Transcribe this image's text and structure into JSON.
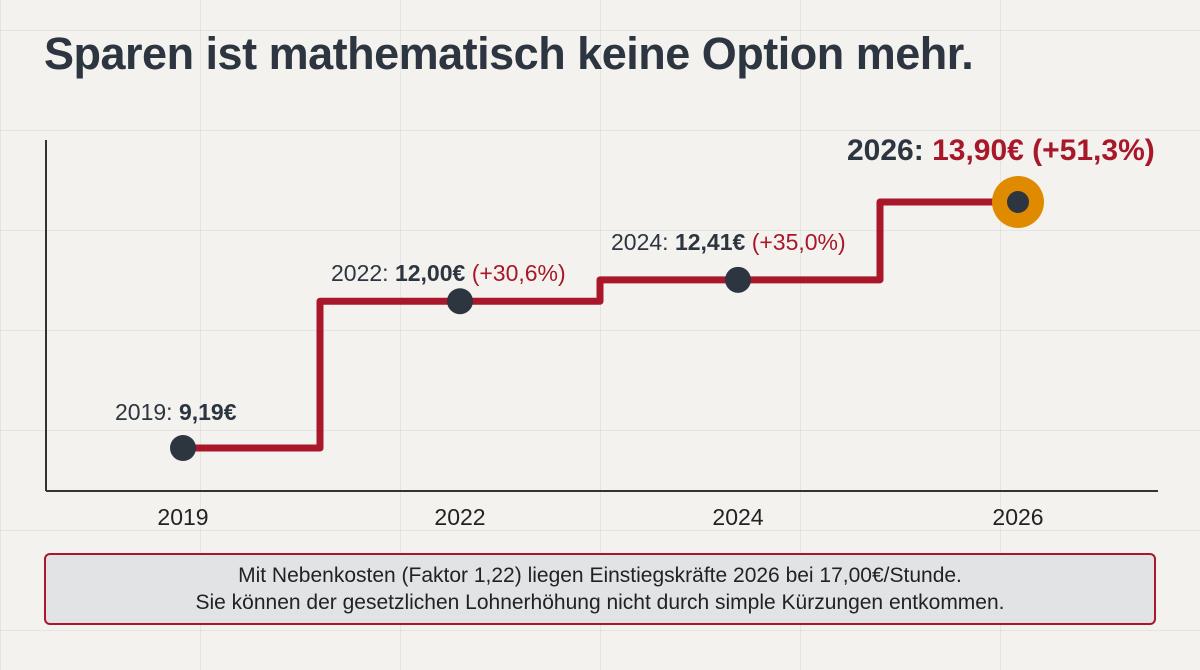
{
  "title": "Sparen ist mathematisch keine Option mehr.",
  "chart_data": {
    "type": "line",
    "step": true,
    "x": [
      2019,
      2022,
      2024,
      2026
    ],
    "x_tick_labels": [
      "2019",
      "2022",
      "2024",
      "2026"
    ],
    "values": [
      9.19,
      12.0,
      12.41,
      13.9
    ],
    "point_labels": [
      {
        "year": "2019: ",
        "value": "9,19€",
        "change": ""
      },
      {
        "year": "2022: ",
        "value": "12,00€",
        "change": " (+30,6%)"
      },
      {
        "year": "2024: ",
        "value": "12,41€",
        "change": " (+35,0%)"
      },
      {
        "year": "2026: ",
        "value": "13,90€ (+51,3%)",
        "change": ""
      }
    ],
    "xlabel": "",
    "ylabel": "",
    "grid": true,
    "line_color": "#a8182a",
    "point_color": "#2c3540",
    "highlight_color": "#e08a00"
  },
  "callout": {
    "line1": "Mit Nebenkosten (Faktor 1,22) liegen Einstiegskräfte 2026 bei 17,00€/Stunde.",
    "line2": "Sie können der gesetzlichen Lohnerhöhung nicht durch simple Kürzungen entkommen."
  }
}
